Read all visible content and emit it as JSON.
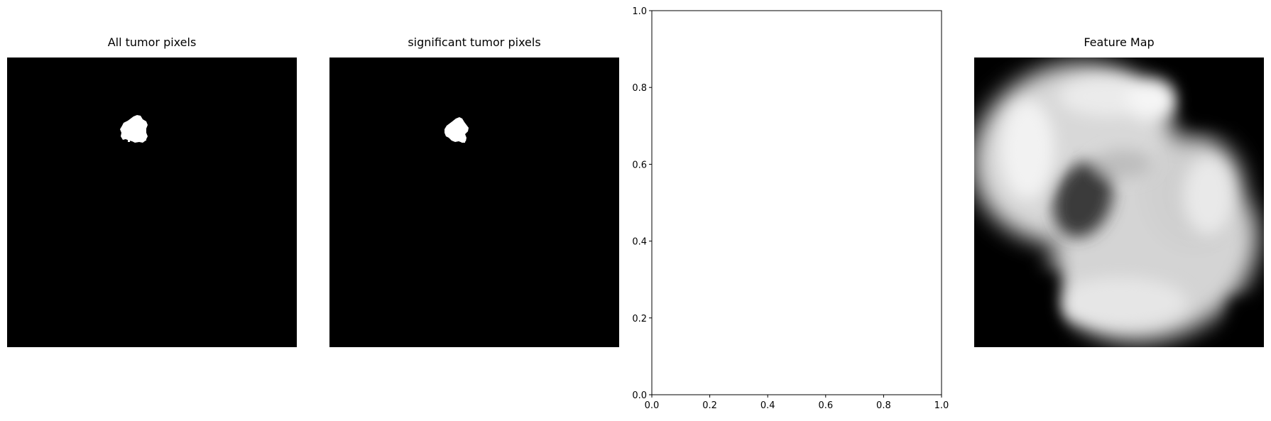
{
  "figure": {
    "panels": [
      {
        "title": "All tumor pixels",
        "kind": "mask-image"
      },
      {
        "title": "significant tumor pixels",
        "kind": "mask-image"
      },
      {
        "title": "",
        "kind": "empty-axes"
      },
      {
        "title": "Feature Map",
        "kind": "grayscale-image"
      }
    ]
  },
  "chart_data": [
    {
      "type": "heatmap",
      "title": "All tumor pixels",
      "colormap": "gray",
      "axes_visible": false,
      "description_values": {
        "background": 0,
        "foreground": 1
      }
    },
    {
      "type": "heatmap",
      "title": "significant tumor pixels",
      "colormap": "gray",
      "axes_visible": false,
      "description_values": {
        "background": 0,
        "foreground": 1
      }
    },
    {
      "type": "scatter",
      "title": "",
      "xlim": [
        0.0,
        1.0
      ],
      "ylim": [
        0.0,
        1.0
      ],
      "x_ticks": [
        "0.0",
        "0.2",
        "0.4",
        "0.6",
        "0.8",
        "1.0"
      ],
      "y_ticks": [
        "0.0",
        "0.2",
        "0.4",
        "0.6",
        "0.8",
        "1.0"
      ],
      "series": []
    },
    {
      "type": "heatmap",
      "title": "Feature Map",
      "colormap": "gray",
      "axes_visible": false
    }
  ]
}
